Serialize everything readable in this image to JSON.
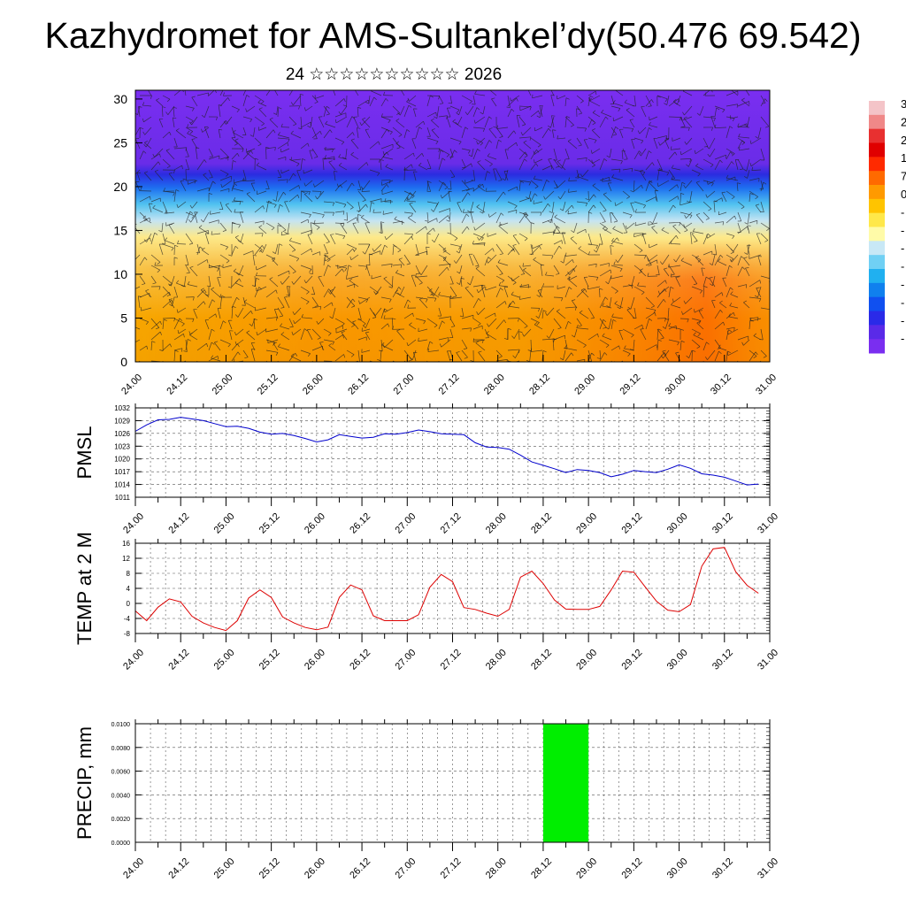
{
  "title": "Kazhydromet for AMS-Sultankel’dy(50.476 69.542)",
  "subtitle": {
    "day": "24",
    "month": "☆☆☆☆☆☆☆☆☆☆",
    "year": "2026"
  },
  "colors": {
    "pmsl_line": "#0000cc",
    "temp_line": "#dd0000",
    "precip_fill": "#00ee00",
    "axis": "#000000",
    "grid": "#555555"
  },
  "chart_data": [
    {
      "type": "heatmap",
      "name": "cross-section",
      "x_tick_labels": [
        "24.00",
        "24.12",
        "25.00",
        "25.12",
        "26.00",
        "26.12",
        "27.00",
        "27.12",
        "28.00",
        "28.12",
        "29.00",
        "29.12",
        "30.00",
        "30.12",
        "31.00"
      ],
      "y_ticks": [
        0,
        5,
        10,
        15,
        20,
        25,
        30
      ],
      "ylim": [
        0,
        31
      ],
      "colorbar_labels": [
        "3",
        "2",
        "2",
        "1",
        "7",
        "0",
        "-",
        "-",
        "-",
        "-",
        "-",
        "-",
        "-",
        "-"
      ],
      "wind_barbs": true
    },
    {
      "type": "line",
      "ylabel": "PMSL",
      "x_tick_labels": [
        "24.00",
        "24.12",
        "25.00",
        "25.12",
        "26.00",
        "26.12",
        "27.00",
        "27.12",
        "28.00",
        "28.12",
        "29.00",
        "29.12",
        "30.00",
        "30.12",
        "31.00"
      ],
      "y_ticks": [
        1011,
        1014,
        1017,
        1020,
        1023,
        1026,
        1029,
        1032
      ],
      "ylim": [
        1011,
        1032
      ],
      "grid": true,
      "x": [
        0,
        3,
        6,
        9,
        12,
        15,
        18,
        21,
        24,
        27,
        30,
        33,
        36,
        39,
        42,
        45,
        48,
        51,
        54,
        57,
        60,
        63,
        66,
        69,
        72,
        75,
        78,
        81,
        84,
        87,
        90,
        93,
        96,
        99,
        102,
        105,
        108,
        111,
        114,
        117,
        120,
        123,
        126,
        129,
        132,
        135,
        138,
        141,
        144,
        147,
        150,
        153,
        156,
        159,
        162,
        165
      ],
      "values": [
        1026.5,
        1028.0,
        1029.2,
        1029.3,
        1029.8,
        1029.4,
        1029.0,
        1028.3,
        1027.6,
        1027.7,
        1027.2,
        1026.3,
        1025.8,
        1026.0,
        1025.5,
        1024.8,
        1024.0,
        1024.5,
        1025.7,
        1025.3,
        1024.9,
        1025.1,
        1025.9,
        1025.8,
        1026.2,
        1026.8,
        1026.4,
        1025.9,
        1025.8,
        1025.7,
        1023.8,
        1022.8,
        1022.7,
        1022.3,
        1020.9,
        1019.3,
        1018.5,
        1017.7,
        1016.8,
        1017.5,
        1017.3,
        1016.8,
        1015.8,
        1016.4,
        1017.3,
        1017.0,
        1016.8,
        1017.6,
        1018.6,
        1017.8,
        1016.5,
        1016.2,
        1015.7,
        1014.8,
        1013.9,
        1014.1
      ]
    },
    {
      "type": "line",
      "ylabel": "TEMP at 2 M",
      "x_tick_labels": [
        "24.00",
        "24.12",
        "25.00",
        "25.12",
        "26.00",
        "26.12",
        "27.00",
        "27.12",
        "28.00",
        "28.12",
        "29.00",
        "29.12",
        "30.00",
        "30.12",
        "31.00"
      ],
      "y_ticks": [
        -8,
        -4,
        0,
        4,
        8,
        12,
        16
      ],
      "ylim": [
        -8,
        16
      ],
      "grid": true,
      "x": [
        0,
        3,
        6,
        9,
        12,
        15,
        18,
        21,
        24,
        27,
        30,
        33,
        36,
        39,
        42,
        45,
        48,
        51,
        54,
        57,
        60,
        63,
        66,
        69,
        72,
        75,
        78,
        81,
        84,
        87,
        90,
        93,
        96,
        99,
        102,
        105,
        108,
        111,
        114,
        117,
        120,
        123,
        126,
        129,
        132,
        135,
        138,
        141,
        144,
        147,
        150,
        153,
        156,
        159,
        162,
        165
      ],
      "values": [
        -2.0,
        -4.6,
        -1.0,
        1.2,
        0.4,
        -3.4,
        -5.2,
        -6.4,
        -7.2,
        -4.6,
        1.4,
        3.6,
        1.6,
        -3.6,
        -5.2,
        -6.4,
        -7.0,
        -6.3,
        1.6,
        4.9,
        3.6,
        -3.3,
        -4.6,
        -4.6,
        -4.6,
        -3.0,
        4.3,
        7.7,
        5.8,
        -1.1,
        -1.6,
        -2.6,
        -3.4,
        -1.6,
        7.0,
        8.6,
        5.3,
        0.9,
        -1.5,
        -1.6,
        -1.6,
        -0.8,
        3.6,
        8.6,
        8.3,
        4.4,
        0.6,
        -1.8,
        -2.2,
        -0.3,
        9.9,
        14.5,
        14.9,
        8.4,
        4.8,
        2.7
      ]
    },
    {
      "type": "bar",
      "ylabel": "PRECIP, mm",
      "x_tick_labels": [
        "24.00",
        "24.12",
        "25.00",
        "25.12",
        "26.00",
        "26.12",
        "27.00",
        "27.12",
        "28.00",
        "28.12",
        "29.00",
        "29.12",
        "30.00",
        "30.12",
        "31.00"
      ],
      "y_tick_labels": [
        "0.0000",
        "0.0020",
        "0.0040",
        "0.0060",
        "0.0080",
        "0.0100"
      ],
      "ylim": [
        0,
        0.01
      ],
      "grid": true,
      "bars": [
        {
          "x_start": 108,
          "x_end": 120,
          "value": 0.01
        }
      ]
    }
  ]
}
